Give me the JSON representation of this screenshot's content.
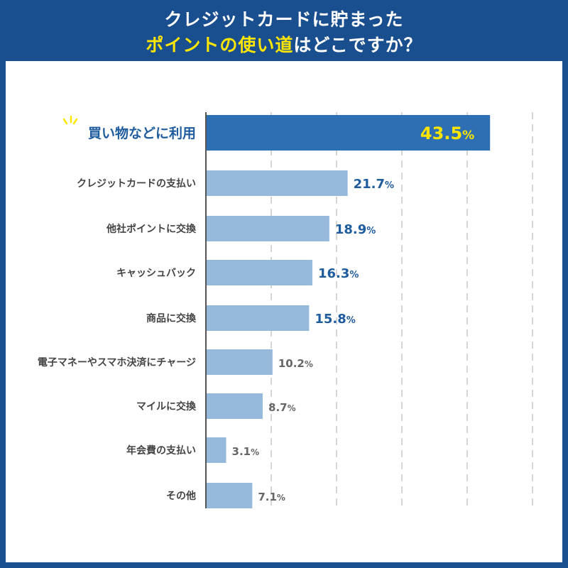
{
  "header": {
    "title_line1": "クレジットカードに貯まった",
    "title_line2_highlight": "ポイントの使い道",
    "title_line2_rest": "はどこですか？"
  },
  "colors": {
    "frame": "#1a4f8f",
    "highlight_bar": "#2e6fb3",
    "bar": "#97b9dc",
    "title_highlight": "#ffe600",
    "value_strong": "#1f5c9e",
    "value_weak": "#666666",
    "grid": "#c8c8c8"
  },
  "chart_data": {
    "type": "bar",
    "orientation": "horizontal",
    "title": "クレジットカードに貯まったポイントの使い道はどこですか？",
    "categories": [
      "買い物などに利用",
      "クレジットカードの支払い",
      "他社ポイントに交換",
      "キャッシュバック",
      "商品に交換",
      "電子マネーやスマホ決済にチャージ",
      "マイルに交換",
      "年会費の支払い",
      "その他"
    ],
    "values": [
      43.5,
      21.7,
      18.9,
      16.3,
      15.8,
      10.2,
      8.7,
      3.1,
      7.1
    ],
    "value_labels": [
      "43.5",
      "21.7",
      "18.9",
      "16.3",
      "15.8",
      "10.2",
      "8.7",
      "3.1",
      "7.1"
    ],
    "unit": "%",
    "highlight_index": 0,
    "xlim": [
      0,
      50
    ],
    "grid": true,
    "xlabel": "",
    "ylabel": ""
  }
}
